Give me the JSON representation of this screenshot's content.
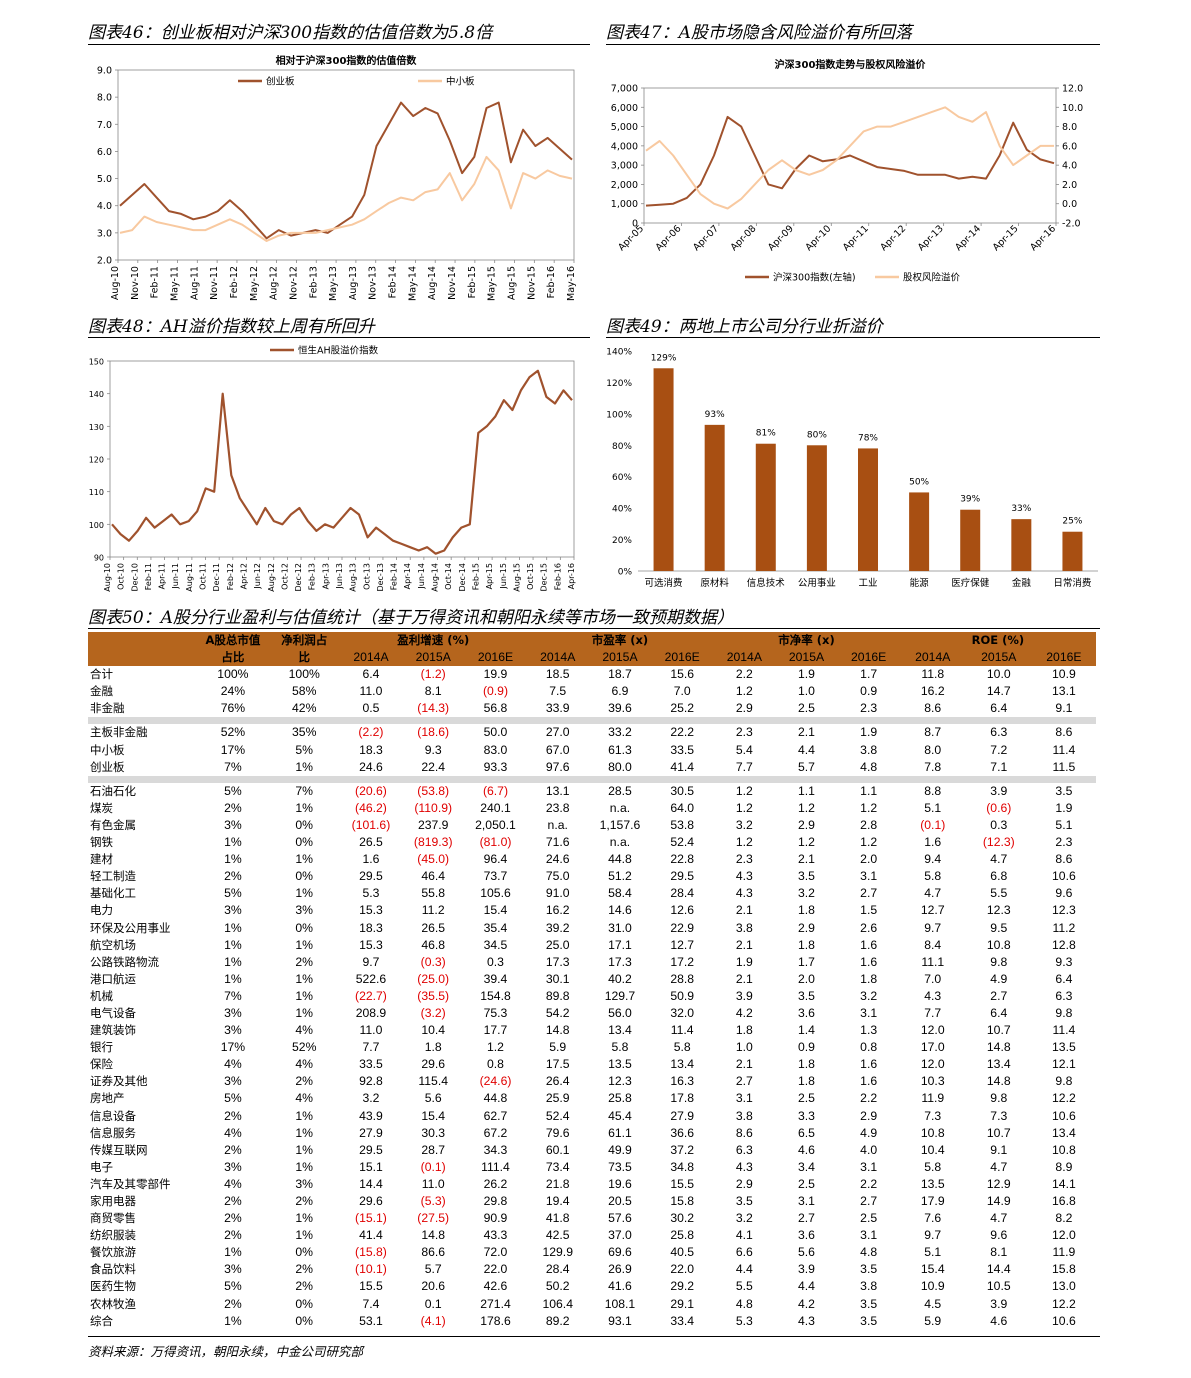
{
  "figures": {
    "fig46": {
      "title": "图表46：创业板相对沪深300指数的估值倍数为5.8倍"
    },
    "fig47": {
      "title": "图表47：A股市场隐含风险溢价有所回落"
    },
    "fig48": {
      "title": "图表48：AH溢价指数较上周有所回升"
    },
    "fig49": {
      "title": "图表49：两地上市公司分行业折溢价"
    },
    "fig50": {
      "title": "图表50：A股分行业盈利与估值统计（基于万得资讯和朝阳永续等市场一致预期数据）"
    }
  },
  "source": "资料来源：万得资讯，朝阳永续，中金公司研究部",
  "colors": {
    "brown": "#a0522d",
    "peach": "#f8c9a0",
    "bar": "#a84f12",
    "header": "#b5651d",
    "negative": "#e00000"
  },
  "chart_data": [
    {
      "id": "fig46",
      "type": "line",
      "title": "相对于沪深300指数的估值倍数",
      "ylim": [
        2.0,
        9.0
      ],
      "yticks": [
        "2.0",
        "3.0",
        "4.0",
        "5.0",
        "6.0",
        "7.0",
        "8.0",
        "9.0"
      ],
      "xticks": [
        "Aug-10",
        "Nov-10",
        "Feb-11",
        "May-11",
        "Aug-11",
        "Nov-11",
        "Feb-12",
        "May-12",
        "Aug-12",
        "Nov-12",
        "Feb-13",
        "May-13",
        "Aug-13",
        "Nov-13",
        "Feb-14",
        "May-14",
        "Aug-14",
        "Nov-14",
        "Feb-15",
        "May-15",
        "Aug-15",
        "Nov-15",
        "Feb-16",
        "May-16"
      ],
      "legend_position": "top",
      "series": [
        {
          "name": "创业板",
          "color": "#a0522d",
          "values": [
            4.0,
            4.4,
            4.8,
            4.3,
            3.8,
            3.7,
            3.5,
            3.6,
            3.8,
            4.2,
            3.8,
            3.3,
            2.8,
            3.1,
            2.9,
            3.0,
            3.1,
            3.0,
            3.3,
            3.6,
            4.4,
            6.2,
            7.0,
            7.8,
            7.3,
            7.6,
            7.4,
            6.4,
            5.2,
            5.8,
            7.6,
            7.8,
            5.6,
            6.8,
            6.2,
            6.5,
            6.1,
            5.7
          ]
        },
        {
          "name": "中小板",
          "color": "#f8c9a0",
          "values": [
            3.0,
            3.1,
            3.6,
            3.4,
            3.3,
            3.2,
            3.1,
            3.1,
            3.3,
            3.5,
            3.3,
            3.0,
            2.7,
            2.9,
            3.0,
            3.0,
            3.0,
            3.1,
            3.2,
            3.3,
            3.5,
            3.8,
            4.1,
            4.3,
            4.2,
            4.5,
            4.6,
            5.2,
            4.2,
            4.8,
            5.8,
            5.3,
            3.9,
            5.2,
            5.0,
            5.3,
            5.1,
            5.0
          ]
        }
      ]
    },
    {
      "id": "fig47",
      "type": "line",
      "title": "沪深300指数走势与股权风险溢价",
      "ylim": [
        0,
        7000
      ],
      "y2lim": [
        -2.0,
        12.0
      ],
      "yticks": [
        "0",
        "1,000",
        "2,000",
        "3,000",
        "4,000",
        "5,000",
        "6,000",
        "7,000"
      ],
      "y2ticks": [
        "-2.0",
        "0.0",
        "2.0",
        "4.0",
        "6.0",
        "8.0",
        "10.0",
        "12.0"
      ],
      "xticks": [
        "Apr-05",
        "Apr-06",
        "Apr-07",
        "Apr-08",
        "Apr-09",
        "Apr-10",
        "Apr-11",
        "Apr-12",
        "Apr-13",
        "Apr-14",
        "Apr-15",
        "Apr-16"
      ],
      "legend_position": "bottom",
      "series": [
        {
          "name": "沪深300指数(左轴)",
          "axis": "left",
          "color": "#a0522d",
          "values": [
            900,
            950,
            1000,
            1300,
            2000,
            3500,
            5500,
            5000,
            3500,
            2000,
            1800,
            2800,
            3500,
            3200,
            3300,
            3500,
            3200,
            2900,
            2800,
            2700,
            2500,
            2500,
            2500,
            2300,
            2400,
            2300,
            3500,
            5200,
            3800,
            3300,
            3100
          ]
        },
        {
          "name": "股权风险溢价",
          "axis": "right",
          "color": "#f8c9a0",
          "values": [
            5.5,
            6.5,
            5.0,
            3.0,
            1.0,
            0.0,
            -0.5,
            0.5,
            2.0,
            3.5,
            4.5,
            3.5,
            3.0,
            3.5,
            4.5,
            6.0,
            7.5,
            8.0,
            8.0,
            8.5,
            9.0,
            9.5,
            10.0,
            9.0,
            8.5,
            9.5,
            6.0,
            4.0,
            5.0,
            6.0,
            6.0
          ]
        }
      ]
    },
    {
      "id": "fig48",
      "type": "line",
      "ylim": [
        90,
        150
      ],
      "yticks": [
        "90",
        "100",
        "110",
        "120",
        "130",
        "140",
        "150"
      ],
      "xticks": [
        "Aug-10",
        "Oct-10",
        "Dec-10",
        "Feb-11",
        "Apr-11",
        "Jun-11",
        "Aug-11",
        "Oct-11",
        "Dec-11",
        "Feb-12",
        "Apr-12",
        "Jun-12",
        "Aug-12",
        "Oct-12",
        "Dec-12",
        "Feb-13",
        "Apr-13",
        "Jun-13",
        "Aug-13",
        "Oct-13",
        "Dec-13",
        "Feb-14",
        "Apr-14",
        "Jun-14",
        "Aug-14",
        "Oct-14",
        "Dec-14",
        "Feb-15",
        "Apr-15",
        "Jun-15",
        "Aug-15",
        "Oct-15",
        "Dec-15",
        "Feb-16",
        "Apr-16"
      ],
      "legend_position": "top",
      "series": [
        {
          "name": "恒生AH股溢价指数",
          "color": "#a0522d",
          "values": [
            100,
            97,
            95,
            98,
            102,
            99,
            101,
            103,
            100,
            101,
            104,
            111,
            110,
            140,
            115,
            108,
            104,
            100,
            105,
            101,
            100,
            103,
            105,
            101,
            98,
            100,
            99,
            102,
            105,
            103,
            96,
            99,
            97,
            95,
            94,
            93,
            92,
            93,
            91,
            92,
            96,
            99,
            100,
            128,
            130,
            133,
            138,
            135,
            141,
            145,
            147,
            139,
            137,
            141,
            138
          ]
        }
      ]
    },
    {
      "id": "fig49",
      "type": "bar",
      "ylim": [
        0,
        140
      ],
      "yticks": [
        "0%",
        "20%",
        "40%",
        "60%",
        "80%",
        "100%",
        "120%",
        "140%"
      ],
      "categories": [
        "可选消费",
        "原材料",
        "信息技术",
        "公用事业",
        "工业",
        "能源",
        "医疗保健",
        "金融",
        "日常消费"
      ],
      "values": [
        129,
        93,
        81,
        80,
        78,
        50,
        39,
        33,
        25
      ],
      "labels": [
        "129%",
        "93%",
        "81%",
        "80%",
        "78%",
        "50%",
        "39%",
        "33%",
        "25%"
      ]
    }
  ],
  "table": {
    "group_headers": {
      "share_mcap": "A股总市值",
      "share_profit": "净利润占",
      "growth": "盈利增速 (%)",
      "pe": "市盈率 (x)",
      "pb": "市净率 (x)",
      "roe": "ROE (%)"
    },
    "sub_headers": {
      "share_mcap": "占比",
      "share_profit": "比",
      "years": [
        "2014A",
        "2015A",
        "2016E",
        "2014A",
        "2015A",
        "2016E",
        "2014A",
        "2015A",
        "2016E",
        "2014A",
        "2015A",
        "2016E"
      ]
    },
    "groups": [
      [
        [
          "合计",
          "100%",
          "100%",
          "6.4",
          "(1.2)",
          "19.9",
          "18.5",
          "18.7",
          "15.6",
          "2.2",
          "1.9",
          "1.7",
          "11.8",
          "10.0",
          "10.9"
        ],
        [
          "金融",
          "24%",
          "58%",
          "11.0",
          "8.1",
          "(0.9)",
          "7.5",
          "6.9",
          "7.0",
          "1.2",
          "1.0",
          "0.9",
          "16.2",
          "14.7",
          "13.1"
        ],
        [
          "非金融",
          "76%",
          "42%",
          "0.5",
          "(14.3)",
          "56.8",
          "33.9",
          "39.6",
          "25.2",
          "2.9",
          "2.5",
          "2.3",
          "8.6",
          "6.4",
          "9.1"
        ]
      ],
      [
        [
          "主板非金融",
          "52%",
          "35%",
          "(2.2)",
          "(18.6)",
          "50.0",
          "27.0",
          "33.2",
          "22.2",
          "2.3",
          "2.1",
          "1.9",
          "8.7",
          "6.3",
          "8.6"
        ],
        [
          "中小板",
          "17%",
          "5%",
          "18.3",
          "9.3",
          "83.0",
          "67.0",
          "61.3",
          "33.5",
          "5.4",
          "4.4",
          "3.8",
          "8.0",
          "7.2",
          "11.4"
        ],
        [
          "创业板",
          "7%",
          "1%",
          "24.6",
          "22.4",
          "93.3",
          "97.6",
          "80.0",
          "41.4",
          "7.7",
          "5.7",
          "4.8",
          "7.8",
          "7.1",
          "11.5"
        ]
      ],
      [
        [
          "石油石化",
          "5%",
          "7%",
          "(20.6)",
          "(53.8)",
          "(6.7)",
          "13.1",
          "28.5",
          "30.5",
          "1.2",
          "1.1",
          "1.1",
          "8.8",
          "3.9",
          "3.5"
        ],
        [
          "煤炭",
          "2%",
          "1%",
          "(46.2)",
          "(110.9)",
          "240.1",
          "23.8",
          "n.a.",
          "64.0",
          "1.2",
          "1.2",
          "1.2",
          "5.1",
          "(0.6)",
          "1.9"
        ],
        [
          "有色金属",
          "3%",
          "0%",
          "(101.6)",
          "237.9",
          "2,050.1",
          "n.a.",
          "1,157.6",
          "53.8",
          "3.2",
          "2.9",
          "2.8",
          "(0.1)",
          "0.3",
          "5.1"
        ],
        [
          "钢铁",
          "1%",
          "0%",
          "26.5",
          "(819.3)",
          "(81.0)",
          "71.6",
          "n.a.",
          "52.4",
          "1.2",
          "1.2",
          "1.2",
          "1.6",
          "(12.3)",
          "2.3"
        ],
        [
          "建材",
          "1%",
          "1%",
          "1.6",
          "(45.0)",
          "96.4",
          "24.6",
          "44.8",
          "22.8",
          "2.3",
          "2.1",
          "2.0",
          "9.4",
          "4.7",
          "8.6"
        ],
        [
          "轻工制造",
          "2%",
          "0%",
          "29.5",
          "46.4",
          "73.7",
          "75.0",
          "51.2",
          "29.5",
          "4.3",
          "3.5",
          "3.1",
          "5.8",
          "6.8",
          "10.6"
        ],
        [
          "基础化工",
          "5%",
          "1%",
          "5.3",
          "55.8",
          "105.6",
          "91.0",
          "58.4",
          "28.4",
          "4.3",
          "3.2",
          "2.7",
          "4.7",
          "5.5",
          "9.6"
        ],
        [
          "电力",
          "3%",
          "3%",
          "15.3",
          "11.2",
          "15.4",
          "16.2",
          "14.6",
          "12.6",
          "2.1",
          "1.8",
          "1.5",
          "12.7",
          "12.3",
          "12.3"
        ],
        [
          "环保及公用事业",
          "1%",
          "0%",
          "18.3",
          "26.5",
          "35.4",
          "39.2",
          "31.0",
          "22.9",
          "3.8",
          "2.9",
          "2.6",
          "9.7",
          "9.5",
          "11.2"
        ],
        [
          "航空机场",
          "1%",
          "1%",
          "15.3",
          "46.8",
          "34.5",
          "25.0",
          "17.1",
          "12.7",
          "2.1",
          "1.8",
          "1.6",
          "8.4",
          "10.8",
          "12.8"
        ],
        [
          "公路铁路物流",
          "1%",
          "2%",
          "9.7",
          "(0.3)",
          "0.3",
          "17.3",
          "17.3",
          "17.2",
          "1.9",
          "1.7",
          "1.6",
          "11.1",
          "9.8",
          "9.3"
        ],
        [
          "港口航运",
          "1%",
          "1%",
          "522.6",
          "(25.0)",
          "39.4",
          "30.1",
          "40.2",
          "28.8",
          "2.1",
          "2.0",
          "1.8",
          "7.0",
          "4.9",
          "6.4"
        ],
        [
          "机械",
          "7%",
          "1%",
          "(22.7)",
          "(35.5)",
          "154.8",
          "89.8",
          "129.7",
          "50.9",
          "3.9",
          "3.5",
          "3.2",
          "4.3",
          "2.7",
          "6.3"
        ],
        [
          "电气设备",
          "3%",
          "1%",
          "208.9",
          "(3.2)",
          "75.3",
          "54.2",
          "56.0",
          "32.0",
          "4.2",
          "3.6",
          "3.1",
          "7.7",
          "6.4",
          "9.8"
        ],
        [
          "建筑装饰",
          "3%",
          "4%",
          "11.0",
          "10.4",
          "17.7",
          "14.8",
          "13.4",
          "11.4",
          "1.8",
          "1.4",
          "1.3",
          "12.0",
          "10.7",
          "11.4"
        ],
        [
          "银行",
          "17%",
          "52%",
          "7.7",
          "1.8",
          "1.2",
          "5.9",
          "5.8",
          "5.8",
          "1.0",
          "0.9",
          "0.8",
          "17.0",
          "14.8",
          "13.5"
        ],
        [
          "保险",
          "4%",
          "4%",
          "33.5",
          "29.6",
          "0.8",
          "17.5",
          "13.5",
          "13.4",
          "2.1",
          "1.8",
          "1.6",
          "12.0",
          "13.4",
          "12.1"
        ],
        [
          "证券及其他",
          "3%",
          "2%",
          "92.8",
          "115.4",
          "(24.6)",
          "26.4",
          "12.3",
          "16.3",
          "2.7",
          "1.8",
          "1.6",
          "10.3",
          "14.8",
          "9.8"
        ],
        [
          "房地产",
          "5%",
          "4%",
          "3.2",
          "5.6",
          "44.8",
          "25.9",
          "25.8",
          "17.8",
          "3.1",
          "2.5",
          "2.2",
          "11.9",
          "9.8",
          "12.2"
        ],
        [
          "信息设备",
          "2%",
          "1%",
          "43.9",
          "15.4",
          "62.7",
          "52.4",
          "45.4",
          "27.9",
          "3.8",
          "3.3",
          "2.9",
          "7.3",
          "7.3",
          "10.6"
        ],
        [
          "信息服务",
          "4%",
          "1%",
          "27.9",
          "30.3",
          "67.2",
          "79.6",
          "61.1",
          "36.6",
          "8.6",
          "6.5",
          "4.9",
          "10.8",
          "10.7",
          "13.4"
        ],
        [
          "传媒互联网",
          "2%",
          "1%",
          "29.5",
          "28.7",
          "34.3",
          "60.1",
          "49.9",
          "37.2",
          "6.3",
          "4.6",
          "4.0",
          "10.4",
          "9.1",
          "10.8"
        ],
        [
          "电子",
          "3%",
          "1%",
          "15.1",
          "(0.1)",
          "111.4",
          "73.4",
          "73.5",
          "34.8",
          "4.3",
          "3.4",
          "3.1",
          "5.8",
          "4.7",
          "8.9"
        ],
        [
          "汽车及其零部件",
          "4%",
          "3%",
          "14.4",
          "11.0",
          "26.2",
          "21.8",
          "19.6",
          "15.5",
          "2.9",
          "2.5",
          "2.2",
          "13.5",
          "12.9",
          "14.1"
        ],
        [
          "家用电器",
          "2%",
          "2%",
          "29.6",
          "(5.3)",
          "29.8",
          "19.4",
          "20.5",
          "15.8",
          "3.5",
          "3.1",
          "2.7",
          "17.9",
          "14.9",
          "16.8"
        ],
        [
          "商贸零售",
          "2%",
          "1%",
          "(15.1)",
          "(27.5)",
          "90.9",
          "41.8",
          "57.6",
          "30.2",
          "3.2",
          "2.7",
          "2.5",
          "7.6",
          "4.7",
          "8.2"
        ],
        [
          "纺织服装",
          "2%",
          "1%",
          "41.4",
          "14.8",
          "43.3",
          "42.5",
          "37.0",
          "25.8",
          "4.1",
          "3.6",
          "3.1",
          "9.7",
          "9.6",
          "12.0"
        ],
        [
          "餐饮旅游",
          "1%",
          "0%",
          "(15.8)",
          "86.6",
          "72.0",
          "129.9",
          "69.6",
          "40.5",
          "6.6",
          "5.6",
          "4.8",
          "5.1",
          "8.1",
          "11.9"
        ],
        [
          "食品饮料",
          "3%",
          "2%",
          "(10.1)",
          "5.7",
          "22.0",
          "28.4",
          "26.9",
          "22.0",
          "4.4",
          "3.9",
          "3.5",
          "15.4",
          "14.4",
          "15.8"
        ],
        [
          "医药生物",
          "5%",
          "2%",
          "15.5",
          "20.6",
          "42.6",
          "50.2",
          "41.6",
          "29.2",
          "5.5",
          "4.4",
          "3.8",
          "10.9",
          "10.5",
          "13.0"
        ],
        [
          "农林牧渔",
          "2%",
          "0%",
          "7.4",
          "0.1",
          "271.4",
          "106.4",
          "108.1",
          "29.1",
          "4.8",
          "4.2",
          "3.5",
          "4.5",
          "3.9",
          "12.2"
        ],
        [
          "综合",
          "1%",
          "0%",
          "53.1",
          "(4.1)",
          "178.6",
          "89.2",
          "93.1",
          "33.4",
          "5.3",
          "4.3",
          "3.5",
          "5.9",
          "4.6",
          "10.6"
        ]
      ]
    ]
  }
}
